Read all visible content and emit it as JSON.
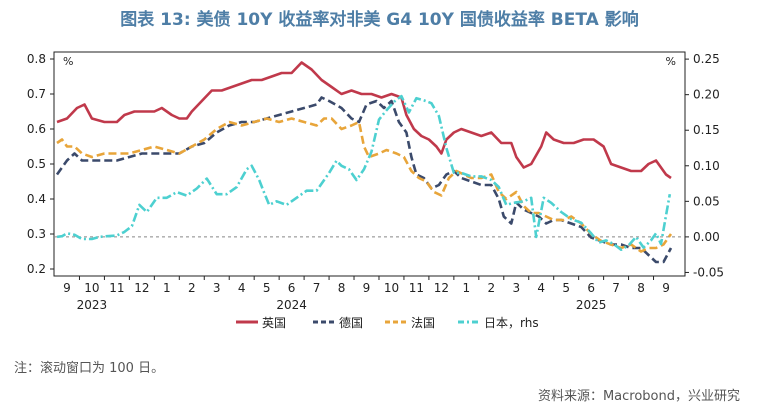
{
  "title": "图表 13: 美债 10Y 收益率对非美 G4 10Y 国债收益率 BETA 影响",
  "note": "注：滚动窗口为 100 日。",
  "source": "资料来源：Macrobond，兴业研究",
  "chart_data": {
    "type": "line",
    "left_axis": {
      "unit": "%",
      "range": [
        0.18,
        0.82
      ],
      "ticks": [
        0.2,
        0.3,
        0.4,
        0.5,
        0.6,
        0.7,
        0.8
      ],
      "tick_labels": [
        "0.2",
        "0.3",
        "0.4",
        "0.5",
        "0.6",
        "0.7",
        "0.8"
      ]
    },
    "right_axis": {
      "unit": "%",
      "range": [
        -0.055,
        0.26
      ],
      "ticks": [
        -0.05,
        0.0,
        0.05,
        0.1,
        0.15,
        0.2,
        0.25
      ],
      "tick_labels": [
        "-0.05",
        "0.00",
        "0.05",
        "0.10",
        "0.15",
        "0.20",
        "0.25"
      ]
    },
    "x_axis": {
      "start_month": 8.6,
      "end_month": 33.4,
      "months": [
        9,
        10,
        11,
        12,
        13,
        14,
        15,
        16,
        17,
        18,
        19,
        20,
        21,
        22,
        23,
        24,
        25,
        26,
        27,
        28,
        29,
        30,
        31,
        32,
        33
      ],
      "tick_labels": [
        "9",
        "10",
        "11",
        "12",
        "1",
        "2",
        "3",
        "4",
        "5",
        "6",
        "7",
        "8",
        "9",
        "10",
        "11",
        "12",
        "1",
        "2",
        "3",
        "4",
        "5",
        "6",
        "7",
        "8",
        "9"
      ],
      "year_labels": [
        {
          "label": "2023",
          "month": 10.0
        },
        {
          "label": "2024",
          "month": 18.0
        },
        {
          "label": "2025",
          "month": 30.0
        }
      ]
    },
    "zero_line_rhs": 0.0,
    "series": [
      {
        "name": "英国",
        "axis": "left",
        "color": "#c0394b",
        "dash": "solid",
        "points": [
          [
            8.6,
            0.62
          ],
          [
            9.0,
            0.63
          ],
          [
            9.4,
            0.66
          ],
          [
            9.7,
            0.67
          ],
          [
            10.0,
            0.63
          ],
          [
            10.5,
            0.62
          ],
          [
            11.0,
            0.62
          ],
          [
            11.3,
            0.64
          ],
          [
            11.7,
            0.65
          ],
          [
            12.0,
            0.65
          ],
          [
            12.5,
            0.65
          ],
          [
            12.8,
            0.66
          ],
          [
            13.2,
            0.64
          ],
          [
            13.5,
            0.63
          ],
          [
            13.8,
            0.63
          ],
          [
            14.0,
            0.65
          ],
          [
            14.4,
            0.68
          ],
          [
            14.8,
            0.71
          ],
          [
            15.2,
            0.71
          ],
          [
            15.6,
            0.72
          ],
          [
            16.0,
            0.73
          ],
          [
            16.4,
            0.74
          ],
          [
            16.8,
            0.74
          ],
          [
            17.2,
            0.75
          ],
          [
            17.6,
            0.76
          ],
          [
            18.0,
            0.76
          ],
          [
            18.4,
            0.79
          ],
          [
            18.8,
            0.77
          ],
          [
            19.2,
            0.74
          ],
          [
            19.6,
            0.72
          ],
          [
            20.0,
            0.7
          ],
          [
            20.4,
            0.71
          ],
          [
            20.8,
            0.7
          ],
          [
            21.2,
            0.7
          ],
          [
            21.6,
            0.69
          ],
          [
            22.0,
            0.7
          ],
          [
            22.4,
            0.69
          ],
          [
            22.6,
            0.64
          ],
          [
            22.9,
            0.6
          ],
          [
            23.2,
            0.58
          ],
          [
            23.5,
            0.57
          ],
          [
            23.8,
            0.55
          ],
          [
            24.0,
            0.53
          ],
          [
            24.2,
            0.57
          ],
          [
            24.5,
            0.59
          ],
          [
            24.8,
            0.6
          ],
          [
            25.2,
            0.59
          ],
          [
            25.6,
            0.58
          ],
          [
            26.0,
            0.59
          ],
          [
            26.4,
            0.56
          ],
          [
            26.8,
            0.56
          ],
          [
            27.0,
            0.52
          ],
          [
            27.3,
            0.49
          ],
          [
            27.6,
            0.5
          ],
          [
            28.0,
            0.55
          ],
          [
            28.2,
            0.59
          ],
          [
            28.5,
            0.57
          ],
          [
            28.9,
            0.56
          ],
          [
            29.3,
            0.56
          ],
          [
            29.7,
            0.57
          ],
          [
            30.1,
            0.57
          ],
          [
            30.5,
            0.55
          ],
          [
            30.8,
            0.5
          ],
          [
            31.2,
            0.49
          ],
          [
            31.6,
            0.48
          ],
          [
            32.0,
            0.48
          ],
          [
            32.3,
            0.5
          ],
          [
            32.6,
            0.51
          ],
          [
            32.8,
            0.49
          ],
          [
            33.0,
            0.47
          ],
          [
            33.2,
            0.46
          ]
        ]
      },
      {
        "name": "德国",
        "axis": "left",
        "color": "#3b4a6b",
        "dash": "8,4",
        "points": [
          [
            8.6,
            0.47
          ],
          [
            8.8,
            0.49
          ],
          [
            9.0,
            0.51
          ],
          [
            9.3,
            0.53
          ],
          [
            9.6,
            0.51
          ],
          [
            10.0,
            0.51
          ],
          [
            10.5,
            0.51
          ],
          [
            11.0,
            0.51
          ],
          [
            11.5,
            0.52
          ],
          [
            12.0,
            0.53
          ],
          [
            12.5,
            0.53
          ],
          [
            13.0,
            0.53
          ],
          [
            13.5,
            0.53
          ],
          [
            14.0,
            0.55
          ],
          [
            14.5,
            0.56
          ],
          [
            15.0,
            0.59
          ],
          [
            15.5,
            0.61
          ],
          [
            16.0,
            0.62
          ],
          [
            16.5,
            0.62
          ],
          [
            17.0,
            0.63
          ],
          [
            17.5,
            0.64
          ],
          [
            18.0,
            0.65
          ],
          [
            18.5,
            0.66
          ],
          [
            19.0,
            0.67
          ],
          [
            19.2,
            0.69
          ],
          [
            19.5,
            0.68
          ],
          [
            20.0,
            0.66
          ],
          [
            20.4,
            0.63
          ],
          [
            20.7,
            0.62
          ],
          [
            21.0,
            0.67
          ],
          [
            21.4,
            0.68
          ],
          [
            21.7,
            0.66
          ],
          [
            22.0,
            0.68
          ],
          [
            22.3,
            0.62
          ],
          [
            22.6,
            0.59
          ],
          [
            22.8,
            0.52
          ],
          [
            23.0,
            0.47
          ],
          [
            23.3,
            0.46
          ],
          [
            23.6,
            0.43
          ],
          [
            23.9,
            0.44
          ],
          [
            24.2,
            0.47
          ],
          [
            24.5,
            0.48
          ],
          [
            24.8,
            0.46
          ],
          [
            25.2,
            0.45
          ],
          [
            25.6,
            0.44
          ],
          [
            26.0,
            0.44
          ],
          [
            26.3,
            0.4
          ],
          [
            26.5,
            0.35
          ],
          [
            26.8,
            0.33
          ],
          [
            27.0,
            0.39
          ],
          [
            27.3,
            0.37
          ],
          [
            27.6,
            0.36
          ],
          [
            27.9,
            0.35
          ],
          [
            28.2,
            0.33
          ],
          [
            28.5,
            0.34
          ],
          [
            28.8,
            0.34
          ],
          [
            29.2,
            0.33
          ],
          [
            29.6,
            0.32
          ],
          [
            30.0,
            0.29
          ],
          [
            30.4,
            0.28
          ],
          [
            30.8,
            0.27
          ],
          [
            31.2,
            0.27
          ],
          [
            31.6,
            0.26
          ],
          [
            32.0,
            0.26
          ],
          [
            32.3,
            0.24
          ],
          [
            32.6,
            0.22
          ],
          [
            32.9,
            0.22
          ],
          [
            33.2,
            0.26
          ]
        ]
      },
      {
        "name": "法国",
        "axis": "left",
        "color": "#e8a53a",
        "dash": "8,4",
        "points": [
          [
            8.6,
            0.56
          ],
          [
            8.8,
            0.57
          ],
          [
            9.0,
            0.55
          ],
          [
            9.3,
            0.55
          ],
          [
            9.6,
            0.53
          ],
          [
            10.0,
            0.52
          ],
          [
            10.5,
            0.53
          ],
          [
            11.0,
            0.53
          ],
          [
            11.5,
            0.53
          ],
          [
            12.0,
            0.54
          ],
          [
            12.5,
            0.55
          ],
          [
            13.0,
            0.54
          ],
          [
            13.5,
            0.53
          ],
          [
            14.0,
            0.55
          ],
          [
            14.5,
            0.57
          ],
          [
            15.0,
            0.6
          ],
          [
            15.5,
            0.62
          ],
          [
            16.0,
            0.61
          ],
          [
            16.5,
            0.62
          ],
          [
            17.0,
            0.63
          ],
          [
            17.5,
            0.62
          ],
          [
            18.0,
            0.63
          ],
          [
            18.5,
            0.62
          ],
          [
            19.0,
            0.61
          ],
          [
            19.3,
            0.63
          ],
          [
            19.6,
            0.63
          ],
          [
            20.0,
            0.6
          ],
          [
            20.4,
            0.61
          ],
          [
            20.7,
            0.62
          ],
          [
            20.9,
            0.55
          ],
          [
            21.1,
            0.52
          ],
          [
            21.5,
            0.53
          ],
          [
            21.8,
            0.54
          ],
          [
            22.2,
            0.53
          ],
          [
            22.5,
            0.52
          ],
          [
            22.8,
            0.48
          ],
          [
            23.1,
            0.46
          ],
          [
            23.4,
            0.45
          ],
          [
            23.7,
            0.42
          ],
          [
            24.0,
            0.41
          ],
          [
            24.3,
            0.46
          ],
          [
            24.6,
            0.48
          ],
          [
            24.9,
            0.47
          ],
          [
            25.2,
            0.46
          ],
          [
            25.6,
            0.46
          ],
          [
            26.0,
            0.47
          ],
          [
            26.3,
            0.42
          ],
          [
            26.6,
            0.4
          ],
          [
            27.0,
            0.42
          ],
          [
            27.3,
            0.38
          ],
          [
            27.6,
            0.36
          ],
          [
            27.9,
            0.36
          ],
          [
            28.2,
            0.35
          ],
          [
            28.5,
            0.34
          ],
          [
            28.9,
            0.34
          ],
          [
            29.2,
            0.35
          ],
          [
            29.6,
            0.33
          ],
          [
            30.0,
            0.3
          ],
          [
            30.4,
            0.28
          ],
          [
            30.8,
            0.27
          ],
          [
            31.2,
            0.26
          ],
          [
            31.6,
            0.27
          ],
          [
            32.0,
            0.25
          ],
          [
            32.3,
            0.26
          ],
          [
            32.6,
            0.26
          ],
          [
            32.9,
            0.27
          ],
          [
            33.2,
            0.3
          ]
        ]
      },
      {
        "name": "日本，rhs",
        "axis": "right",
        "color": "#4dd0d0",
        "dash": "9,3,2,3",
        "points": [
          [
            8.6,
            0.0
          ],
          [
            8.8,
            0.001
          ],
          [
            9.0,
            0.005
          ],
          [
            9.3,
            0.003
          ],
          [
            9.6,
            -0.003
          ],
          [
            10.0,
            -0.003
          ],
          [
            10.3,
            0.0
          ],
          [
            10.6,
            0.001
          ],
          [
            11.0,
            0.002
          ],
          [
            11.3,
            0.007
          ],
          [
            11.6,
            0.015
          ],
          [
            11.9,
            0.045
          ],
          [
            12.2,
            0.035
          ],
          [
            12.6,
            0.055
          ],
          [
            13.0,
            0.055
          ],
          [
            13.4,
            0.063
          ],
          [
            13.8,
            0.058
          ],
          [
            14.2,
            0.068
          ],
          [
            14.6,
            0.082
          ],
          [
            15.0,
            0.06
          ],
          [
            15.4,
            0.06
          ],
          [
            15.8,
            0.07
          ],
          [
            16.2,
            0.095
          ],
          [
            16.4,
            0.1
          ],
          [
            16.7,
            0.08
          ],
          [
            16.9,
            0.062
          ],
          [
            17.1,
            0.045
          ],
          [
            17.4,
            0.05
          ],
          [
            17.8,
            0.045
          ],
          [
            18.2,
            0.055
          ],
          [
            18.6,
            0.065
          ],
          [
            19.0,
            0.065
          ],
          [
            19.5,
            0.09
          ],
          [
            19.8,
            0.107
          ],
          [
            20.0,
            0.1
          ],
          [
            20.3,
            0.095
          ],
          [
            20.6,
            0.08
          ],
          [
            20.9,
            0.095
          ],
          [
            21.2,
            0.12
          ],
          [
            21.5,
            0.165
          ],
          [
            21.8,
            0.178
          ],
          [
            22.1,
            0.19
          ],
          [
            22.4,
            0.198
          ],
          [
            22.7,
            0.175
          ],
          [
            23.0,
            0.195
          ],
          [
            23.3,
            0.192
          ],
          [
            23.6,
            0.188
          ],
          [
            23.9,
            0.17
          ],
          [
            24.2,
            0.125
          ],
          [
            24.5,
            0.09
          ],
          [
            24.8,
            0.09
          ],
          [
            25.2,
            0.085
          ],
          [
            25.6,
            0.085
          ],
          [
            26.0,
            0.08
          ],
          [
            26.3,
            0.07
          ],
          [
            26.6,
            0.045
          ],
          [
            26.9,
            0.048
          ],
          [
            27.3,
            0.05
          ],
          [
            27.6,
            0.055
          ],
          [
            27.8,
            0.0
          ],
          [
            28.1,
            0.055
          ],
          [
            28.4,
            0.048
          ],
          [
            28.8,
            0.035
          ],
          [
            29.2,
            0.025
          ],
          [
            29.6,
            0.02
          ],
          [
            30.0,
            0.005
          ],
          [
            30.3,
            -0.008
          ],
          [
            30.6,
            -0.005
          ],
          [
            30.9,
            -0.01
          ],
          [
            31.2,
            -0.018
          ],
          [
            31.5,
            -0.012
          ],
          [
            31.8,
            0.0
          ],
          [
            32.1,
            -0.015
          ],
          [
            32.4,
            -0.005
          ],
          [
            32.6,
            0.005
          ],
          [
            32.8,
            -0.01
          ],
          [
            33.0,
            0.03
          ],
          [
            33.15,
            0.06
          ]
        ]
      }
    ]
  }
}
